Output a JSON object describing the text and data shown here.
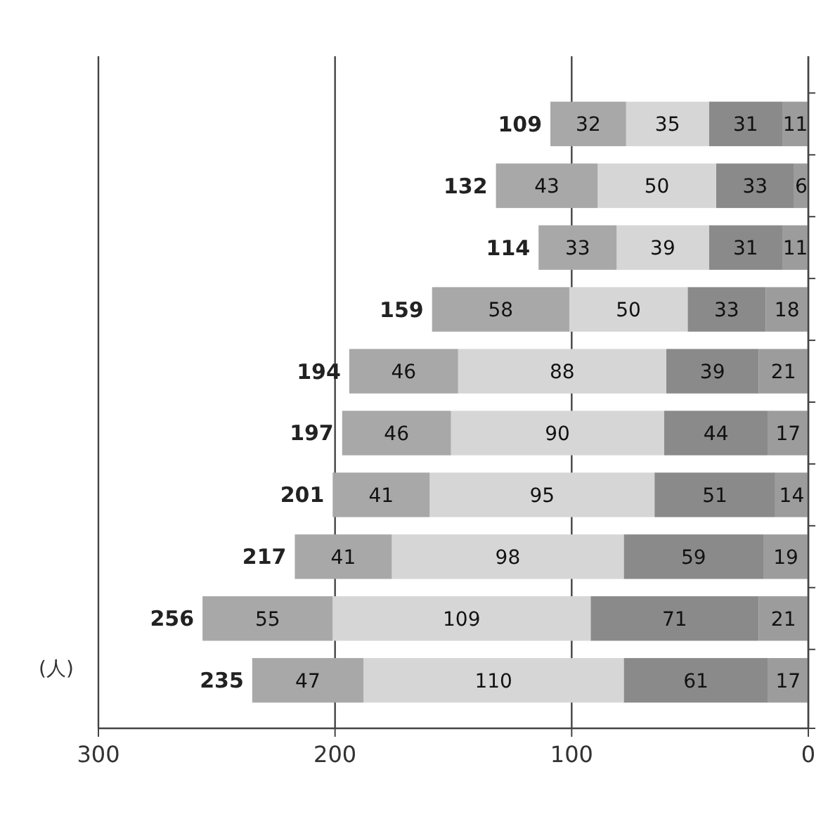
{
  "chart_data": {
    "type": "bar",
    "stacked": true,
    "orientation": "horizontal",
    "xlabel": "(人)",
    "categories": [
      null,
      null,
      null,
      null,
      null,
      null,
      null,
      null,
      null,
      null
    ],
    "series": [
      {
        "color": "#9c9c9c",
        "values": [
          11,
          6,
          11,
          18,
          21,
          17,
          14,
          19,
          21,
          17
        ]
      },
      {
        "color": "#8a8a8a",
        "values": [
          31,
          33,
          31,
          33,
          39,
          44,
          51,
          59,
          71,
          61
        ]
      },
      {
        "color": "#d6d6d6",
        "values": [
          35,
          50,
          39,
          50,
          88,
          90,
          95,
          98,
          109,
          110
        ]
      },
      {
        "color": "#a8a8a8",
        "values": [
          32,
          43,
          33,
          58,
          46,
          46,
          41,
          41,
          55,
          47
        ]
      }
    ],
    "totals": [
      "109",
      "132",
      "114",
      "159",
      "194",
      "197",
      "201",
      "217",
      "256",
      "235"
    ],
    "xlim": [
      300,
      0
    ],
    "xticks": [
      300,
      200,
      100,
      0
    ],
    "grid": "x",
    "data_labels": true
  }
}
